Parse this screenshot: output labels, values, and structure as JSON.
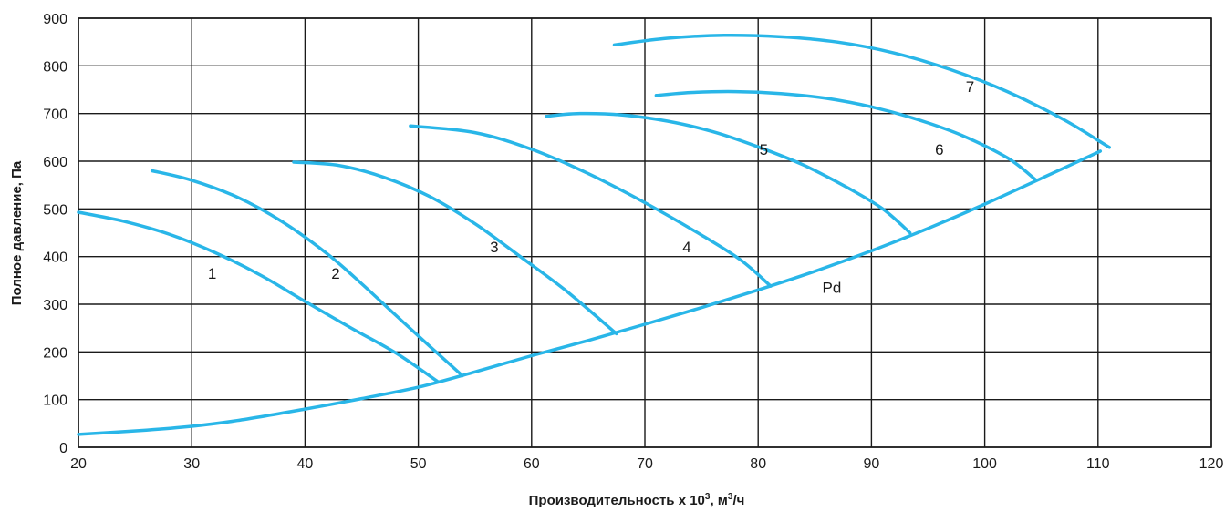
{
  "colors": {
    "curve": "#29b6e8",
    "grid": "#1a1a1a",
    "background": "#ffffff"
  },
  "chart_data": {
    "type": "line",
    "xlabel": "Производительность x 10³, м³/ч",
    "xlabel_parts": {
      "main": "Производительность x 10",
      "sup1": "3",
      "mid": ", м",
      "sup2": "3",
      "tail": "/ч"
    },
    "ylabel": "Полное давление, Па",
    "xlim": [
      20,
      120
    ],
    "ylim": [
      0,
      900
    ],
    "xticks": [
      20,
      30,
      40,
      50,
      60,
      70,
      80,
      90,
      100,
      110,
      120
    ],
    "yticks": [
      0,
      100,
      200,
      300,
      400,
      500,
      600,
      700,
      800,
      900
    ],
    "grid": true,
    "series": [
      {
        "name": "1",
        "label_at": [
          31.8,
          365
        ],
        "points": [
          [
            20,
            493
          ],
          [
            24,
            474
          ],
          [
            28,
            447
          ],
          [
            32,
            409
          ],
          [
            36,
            362
          ],
          [
            40,
            306
          ],
          [
            44,
            251
          ],
          [
            48,
            198
          ],
          [
            51.7,
            138
          ]
        ]
      },
      {
        "name": "2",
        "label_at": [
          42.7,
          365
        ],
        "points": [
          [
            26.5,
            580
          ],
          [
            30,
            560
          ],
          [
            34,
            525
          ],
          [
            38,
            473
          ],
          [
            42,
            405
          ],
          [
            45,
            343
          ],
          [
            48,
            277
          ],
          [
            51,
            212
          ],
          [
            53.9,
            150
          ]
        ]
      },
      {
        "name": "3",
        "label_at": [
          56.7,
          420
        ],
        "points": [
          [
            39,
            598
          ],
          [
            43,
            591
          ],
          [
            47,
            566
          ],
          [
            51,
            526
          ],
          [
            55,
            469
          ],
          [
            59,
            400
          ],
          [
            63,
            329
          ],
          [
            67.5,
            238
          ]
        ]
      },
      {
        "name": "4",
        "label_at": [
          73.7,
          420
        ],
        "points": [
          [
            49.3,
            674
          ],
          [
            55,
            660
          ],
          [
            60,
            625
          ],
          [
            65,
            574
          ],
          [
            70,
            513
          ],
          [
            75,
            445
          ],
          [
            78.5,
            392
          ],
          [
            81.1,
            338
          ]
        ]
      },
      {
        "name": "5",
        "label_at": [
          80.5,
          625
        ],
        "points": [
          [
            61.3,
            694
          ],
          [
            64,
            700
          ],
          [
            68,
            697
          ],
          [
            72,
            684
          ],
          [
            76,
            662
          ],
          [
            80,
            630
          ],
          [
            84,
            592
          ],
          [
            88,
            543
          ],
          [
            91,
            500
          ],
          [
            93.4,
            450
          ]
        ]
      },
      {
        "name": "6",
        "label_at": [
          96,
          625
        ],
        "points": [
          [
            71,
            738
          ],
          [
            74,
            744
          ],
          [
            78,
            746
          ],
          [
            82,
            742
          ],
          [
            86,
            732
          ],
          [
            90,
            714
          ],
          [
            94,
            688
          ],
          [
            98,
            654
          ],
          [
            102,
            607
          ],
          [
            104.5,
            561
          ]
        ]
      },
      {
        "name": "7",
        "label_at": [
          98.7,
          757
        ],
        "points": [
          [
            67.3,
            844
          ],
          [
            72,
            858
          ],
          [
            77,
            864
          ],
          [
            82,
            861
          ],
          [
            87,
            850
          ],
          [
            92,
            827
          ],
          [
            97,
            792
          ],
          [
            102,
            746
          ],
          [
            107,
            687
          ],
          [
            111,
            629
          ]
        ]
      },
      {
        "name": "Pd",
        "label_at": [
          86.5,
          335
        ],
        "points": [
          [
            20,
            27
          ],
          [
            26,
            36
          ],
          [
            30,
            44
          ],
          [
            34,
            56
          ],
          [
            40,
            80
          ],
          [
            45,
            102
          ],
          [
            50,
            126
          ],
          [
            55,
            158
          ],
          [
            60,
            192
          ],
          [
            65,
            224
          ],
          [
            70,
            258
          ],
          [
            75,
            293
          ],
          [
            80,
            330
          ],
          [
            85,
            369
          ],
          [
            90,
            412
          ],
          [
            95,
            459
          ],
          [
            100,
            510
          ],
          [
            105,
            564
          ],
          [
            110.2,
            621
          ]
        ]
      }
    ]
  }
}
